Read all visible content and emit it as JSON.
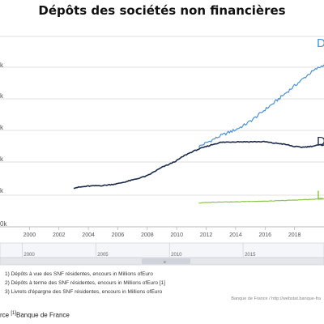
{
  "title": "Dépôts des sociétés non financières",
  "chart_data": {
    "type": "line",
    "title": "Dépôts des sociétés non financières",
    "xlim": [
      1998,
      2020
    ],
    "x_ticks": [
      "2000",
      "2002",
      "2004",
      "2006",
      "2008",
      "2010",
      "2012",
      "2014",
      "2016",
      "2018"
    ],
    "y_tick_labels": [
      "k",
      "k",
      "k",
      "k",
      "k",
      "0k"
    ],
    "navigator_ticks": [
      "2000",
      "2005",
      "2010",
      "2015"
    ],
    "series": [
      {
        "name": "1) Dépôts à vue des SNF résidentes, encours in Millions ofEuro",
        "end_label": "D",
        "color": "#4a90d9",
        "x": [
          2011.5,
          2012,
          2012.5,
          2013,
          2013.5,
          2014,
          2014.5,
          2015,
          2015.5,
          2016,
          2016.5,
          2017,
          2017.5,
          2018,
          2018.5,
          2019,
          2019.5,
          2020
        ],
        "values": [
          172,
          178,
          184,
          190,
          195,
          200,
          206,
          214,
          223,
          233,
          242,
          252,
          262,
          272,
          282,
          292,
          300,
          307
        ]
      },
      {
        "name": "2) Dépôts à terme des SNF résidentes, encours in Millions ofEuro [1]",
        "end_label": "D",
        "color": "#1b2a4a",
        "x": [
          2003,
          2004,
          2005,
          2006,
          2007,
          2008,
          2008.5,
          2009,
          2009.5,
          2010,
          2010.5,
          2011,
          2011.5,
          2012,
          2012.5,
          2013,
          2014,
          2015,
          2016,
          2016.5,
          2017,
          2017.5,
          2018,
          2018.5,
          2019,
          2019.5,
          2020
        ],
        "values": [
          104,
          107,
          108,
          111,
          117,
          124,
          131,
          138,
          143,
          149,
          157,
          163,
          168,
          172,
          176,
          179,
          180,
          180,
          180,
          178,
          177,
          175,
          172,
          171,
          172,
          174,
          175
        ]
      },
      {
        "name": "3) Livrets d'épargne des SNF résidentes, encours in Millions ofEuro",
        "end_label": "L",
        "color": "#8bc34a",
        "x": [
          2011.5,
          2012,
          2013,
          2014,
          2015,
          2016,
          2017,
          2018,
          2019,
          2020
        ],
        "values": [
          79,
          80,
          81,
          81,
          82,
          82,
          83,
          84,
          85,
          86
        ]
      }
    ],
    "ylim": [
      40,
      360
    ],
    "grid": true,
    "legend": "bottom"
  },
  "footer": {
    "credit": "Banque de France / http://webstat.banque-fra",
    "source_prefix": "rce ",
    "source_ref": "[1]",
    "source_text": "Banque de France"
  }
}
